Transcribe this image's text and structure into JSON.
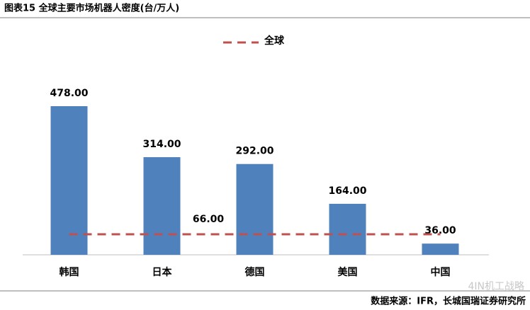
{
  "chart_data": {
    "type": "bar",
    "title": "图表15 全球主要市场机器人密度(台/万人)",
    "categories": [
      "韩国",
      "日本",
      "德国",
      "美国",
      "中国"
    ],
    "values": [
      478,
      314,
      292,
      164,
      36
    ],
    "value_labels": [
      "478.00",
      "314.00",
      "292.00",
      "164.00",
      "36.00"
    ],
    "color": "#4f81bd",
    "reference_line": {
      "name": "全球",
      "value": 66,
      "value_label": "66.00",
      "color": "#c0504d"
    },
    "source": "数据来源：IFR，长城国瑞证券研究所",
    "watermark": "4IN机工战略"
  }
}
